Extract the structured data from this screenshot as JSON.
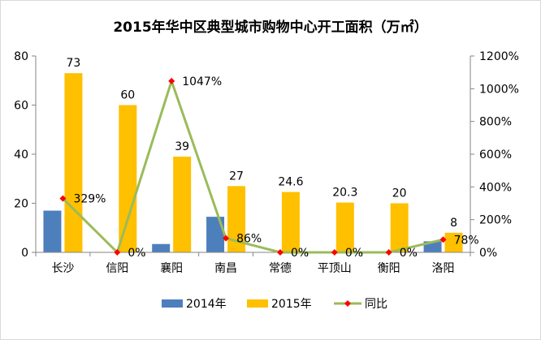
{
  "chart_data": {
    "type": "bar",
    "title": "2015年华中区典型城市购物中心开工面积（万㎡）",
    "categories": [
      "长沙",
      "信阳",
      "襄阳",
      "南昌",
      "常德",
      "平顶山",
      "衡阳",
      "洛阳"
    ],
    "series": [
      {
        "name": "2014年",
        "type": "bar",
        "axis": "left",
        "color": "#4e7fbd",
        "values": [
          17,
          0,
          3.4,
          14.5,
          0,
          0,
          0,
          4.5
        ]
      },
      {
        "name": "2015年",
        "type": "bar",
        "axis": "left",
        "color": "#ffc000",
        "values": [
          73,
          60,
          39,
          27,
          24.6,
          20.3,
          20,
          8
        ],
        "labels": [
          "73",
          "60",
          "39",
          "27",
          "24.6",
          "20.3",
          "20",
          "8"
        ]
      },
      {
        "name": "同比",
        "type": "line",
        "axis": "right",
        "color": "#9bbb59",
        "marker_color": "#ff0000",
        "values": [
          329,
          0,
          1047,
          86,
          0,
          0,
          0,
          78
        ],
        "labels": [
          "329%",
          "0%",
          "1047%",
          "86%",
          "0%",
          "0%",
          "0%",
          "78%"
        ]
      }
    ],
    "y_left": {
      "min": 0,
      "max": 80,
      "ticks": [
        "0",
        "20",
        "40",
        "60",
        "80"
      ]
    },
    "y_right": {
      "min": 0,
      "max": 1200,
      "ticks": [
        "0%",
        "200%",
        "400%",
        "600%",
        "800%",
        "1000%",
        "1200%"
      ]
    },
    "grid": false,
    "legend_position": "bottom"
  }
}
